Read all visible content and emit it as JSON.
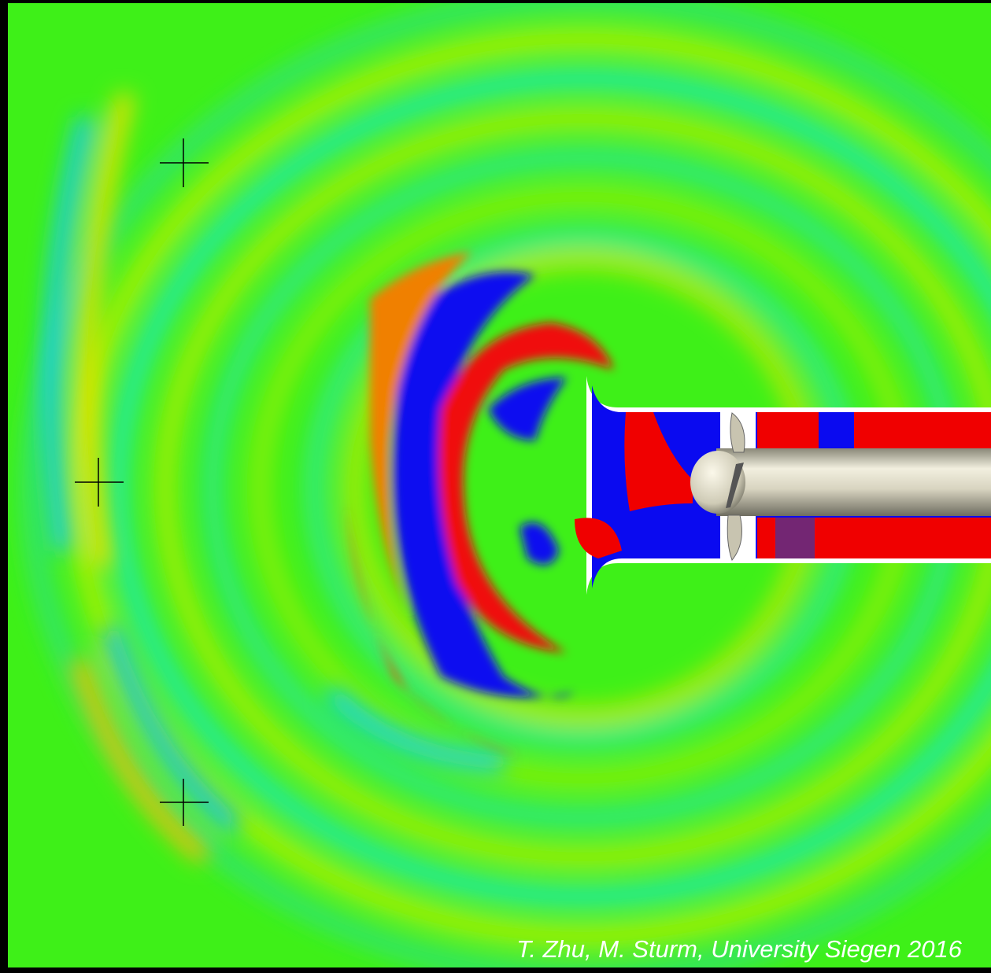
{
  "credit": "T. Zhu, M. Sturm, University Siegen 2016"
}
